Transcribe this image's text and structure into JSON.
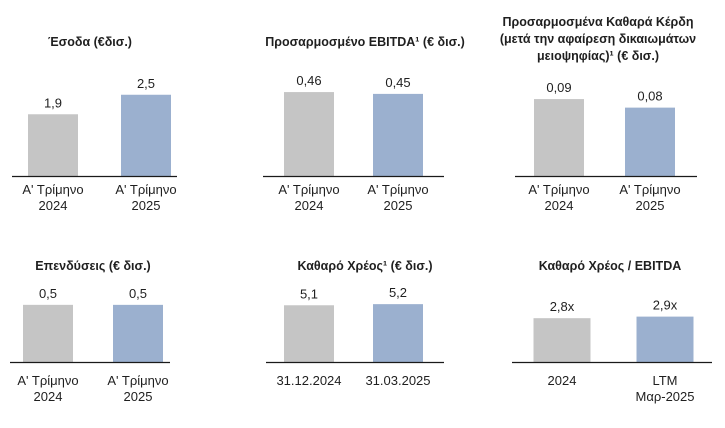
{
  "colors": {
    "bar_2024": "#c5c5c5",
    "bar_2025": "#9bb0cf",
    "axis": "#1a1a1a",
    "text": "#1f1f1f"
  },
  "chart_data": [
    {
      "type": "bar",
      "title": [
        "Έσοδα (€δισ.)"
      ],
      "categories": [
        [
          "Α' Τρίμηνο",
          "2024"
        ],
        [
          "Α' Τρίμηνο",
          "2025"
        ]
      ],
      "values": [
        1.9,
        2.5
      ],
      "value_labels": [
        "1,9",
        "2,5"
      ],
      "ylim": [
        0,
        3.2
      ]
    },
    {
      "type": "bar",
      "title": [
        "Προσαρμοσμένο EBITDA¹ (€ δισ.)"
      ],
      "categories": [
        [
          "Α' Τρίμηνο",
          "2024"
        ],
        [
          "Α' Τρίμηνο",
          "2025"
        ]
      ],
      "values": [
        0.46,
        0.45
      ],
      "value_labels": [
        "0,46",
        "0,45"
      ],
      "ylim": [
        0,
        0.57
      ]
    },
    {
      "type": "bar",
      "title": [
        "Προσαρμοσμένα Καθαρά Κέρδη",
        "(μετά την αφαίρεση δικαιωμάτων",
        "μειοψηφίας)¹ (€ δισ.)"
      ],
      "categories": [
        [
          "Α' Τρίμηνο",
          "2024"
        ],
        [
          "Α' Τρίμηνο",
          "2025"
        ]
      ],
      "values": [
        0.09,
        0.08
      ],
      "value_labels": [
        "0,09",
        "0,08"
      ],
      "ylim": [
        0,
        0.117
      ]
    },
    {
      "type": "bar",
      "title": [
        "Επενδύσεις (€ δισ.)"
      ],
      "categories": [
        [
          "Α' Τρίμηνο",
          "2024"
        ],
        [
          "Α' Τρίμηνο",
          "2025"
        ]
      ],
      "values": [
        0.5,
        0.5
      ],
      "value_labels": [
        "0,5",
        "0,5"
      ],
      "ylim": [
        0,
        0.7
      ]
    },
    {
      "type": "bar",
      "title": [
        "Καθαρό Χρέος¹ (€ δισ.)"
      ],
      "categories": [
        [
          "31.12.2024"
        ],
        [
          "31.03.2025"
        ]
      ],
      "values": [
        5.1,
        5.2
      ],
      "value_labels": [
        "5,1",
        "5,2"
      ],
      "ylim": [
        0,
        7.1
      ]
    },
    {
      "type": "bar",
      "title": [
        "Καθαρό Χρέος / EBITDA"
      ],
      "categories": [
        [
          "2024"
        ],
        [
          "LTM",
          "Μαρ-2025"
        ]
      ],
      "values": [
        2.8,
        2.9
      ],
      "value_labels": [
        "2,8x",
        "2,9x"
      ],
      "ylim": [
        0,
        4.6
      ]
    }
  ]
}
